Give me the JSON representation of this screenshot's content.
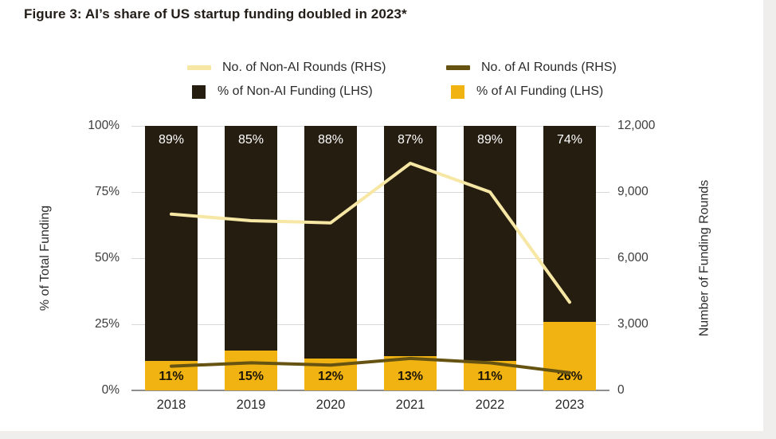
{
  "figure": {
    "title": "Figure 3: AI’s share of US startup funding doubled in 2023*"
  },
  "chart_data": {
    "type": "bar",
    "subtype": "stacked-percent-bars-with-line-overlay",
    "title": "Figure 3: AI’s share of US startup funding doubled in 2023*",
    "categories": [
      "2018",
      "2019",
      "2020",
      "2021",
      "2022",
      "2023"
    ],
    "bar_series": [
      {
        "name": "% of AI Funding (LHS)",
        "axis": "left",
        "color": "#f1b312",
        "values": [
          11,
          15,
          12,
          13,
          11,
          26
        ],
        "labels": [
          "11%",
          "15%",
          "12%",
          "13%",
          "11%",
          "26%"
        ]
      },
      {
        "name": "% of Non-AI Funding (LHS)",
        "axis": "left",
        "color": "#261d11",
        "values": [
          89,
          85,
          88,
          87,
          89,
          74
        ],
        "labels": [
          "89%",
          "85%",
          "88%",
          "87%",
          "89%",
          "74%"
        ]
      }
    ],
    "line_series": [
      {
        "name": "No. of Non-AI Rounds (RHS)",
        "axis": "right",
        "color": "#f7e7a4",
        "values": [
          8000,
          7700,
          7600,
          10300,
          9000,
          4000
        ]
      },
      {
        "name": "No. of AI Rounds (RHS)",
        "axis": "right",
        "color": "#665312",
        "values": [
          1100,
          1250,
          1150,
          1450,
          1250,
          800
        ]
      }
    ],
    "left_axis": {
      "label": "% of Total Funding",
      "min": 0,
      "max": 100,
      "tick_values": [
        0,
        25,
        50,
        75,
        100
      ],
      "tick_labels": [
        "0%",
        "25%",
        "50%",
        "75%",
        "100%"
      ]
    },
    "right_axis": {
      "label": "Number of Funding Rounds",
      "min": 0,
      "max": 12000,
      "tick_values": [
        0,
        3000,
        6000,
        9000,
        12000
      ],
      "tick_labels": [
        "0",
        "3,000",
        "6,000",
        "9,000",
        "12,000"
      ]
    },
    "legend": [
      {
        "label": "No. of Non-AI Rounds (RHS)",
        "swatch": "line",
        "color": "#f7e7a4"
      },
      {
        "label": "No. of AI Rounds (RHS)",
        "swatch": "line",
        "color": "#665312"
      },
      {
        "label": "% of Non-AI Funding (LHS)",
        "swatch": "square",
        "color": "#261d11"
      },
      {
        "label": "% of AI Funding (LHS)",
        "swatch": "square",
        "color": "#f1b312"
      }
    ],
    "grid": true,
    "legend_position": "top"
  }
}
